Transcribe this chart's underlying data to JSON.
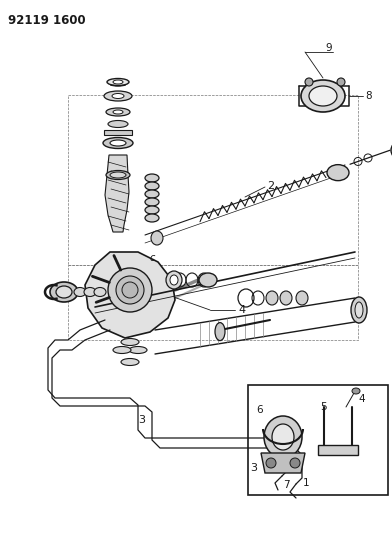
{
  "title": "92119 1600",
  "bg_color": "#ffffff",
  "lc": "#1a1a1a",
  "fig_width": 3.92,
  "fig_height": 5.33,
  "dpi": 100
}
